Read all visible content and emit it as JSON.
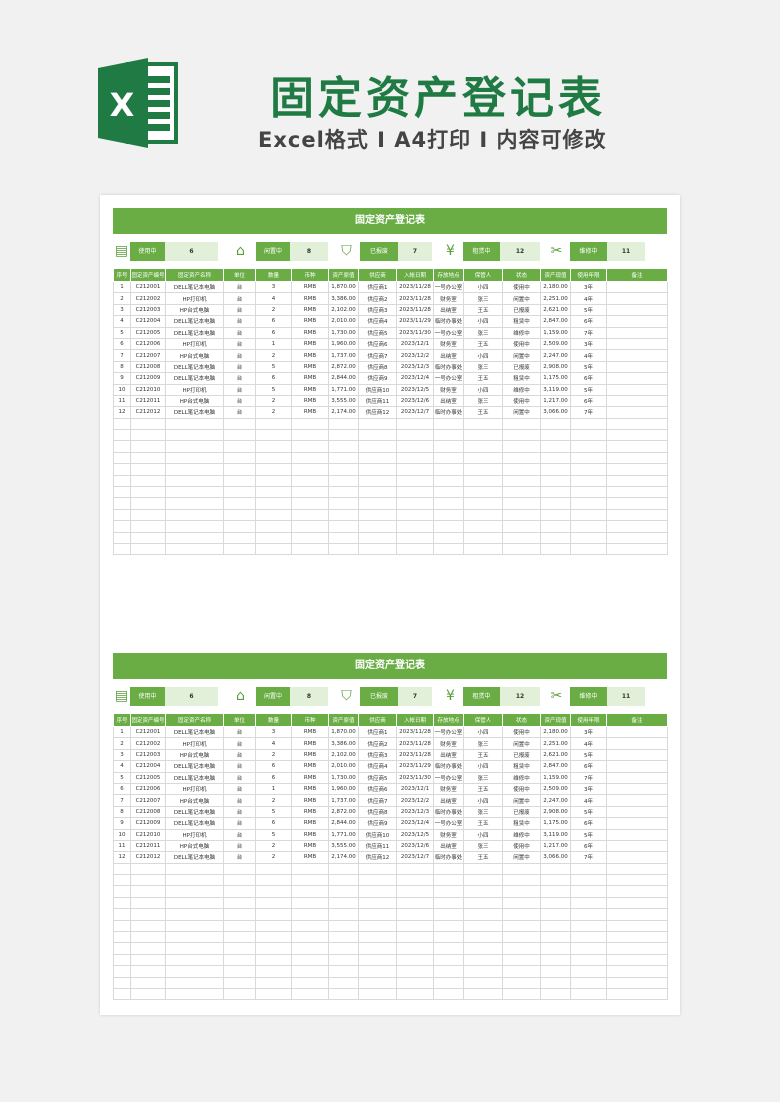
{
  "header": {
    "title": "固定资产登记表",
    "subtitle": "Excel格式 I A4打印 I 内容可修改",
    "logo_letter": "X"
  },
  "colors": {
    "accent": "#6aad44",
    "title_green": "#1f7a43",
    "light": "#e2efd9"
  },
  "sheet": {
    "title": "固定资产登记表",
    "stats": [
      {
        "icon": "document-icon",
        "label": "使用中",
        "value": "6"
      },
      {
        "icon": "house-icon",
        "label": "闲置中",
        "value": "8"
      },
      {
        "icon": "shield-icon",
        "label": "已报废",
        "value": "7"
      },
      {
        "icon": "yen-icon",
        "label": "租赁中",
        "value": "12"
      },
      {
        "icon": "wrench-icon",
        "label": "维修中",
        "value": "11"
      }
    ],
    "columns": [
      "序号",
      "固定资产编号",
      "固定资产名称",
      "单位",
      "数量",
      "币种",
      "资产原值",
      "供应商",
      "入帐日期",
      "存放地点",
      "保管人",
      "状态",
      "资产现值",
      "使用年限",
      "备注"
    ],
    "rows": [
      [
        "1",
        "C212001",
        "DELL笔记本电脑",
        "台",
        "3",
        "RMB",
        "1,870.00",
        "供应商1",
        "2023/11/28",
        "一号办公室",
        "小四",
        "使用中",
        "2,180.00",
        "3年",
        ""
      ],
      [
        "2",
        "C212002",
        "HP打印机",
        "台",
        "4",
        "RMB",
        "3,386.00",
        "供应商2",
        "2023/11/28",
        "财务室",
        "张三",
        "闲置中",
        "2,251.00",
        "4年",
        ""
      ],
      [
        "3",
        "C212003",
        "HP台式电脑",
        "台",
        "2",
        "RMB",
        "2,102.00",
        "供应商3",
        "2023/11/28",
        "出纳室",
        "王五",
        "已报废",
        "2,621.00",
        "5年",
        ""
      ],
      [
        "4",
        "C212004",
        "DELL笔记本电脑",
        "台",
        "6",
        "RMB",
        "2,010.00",
        "供应商4",
        "2023/11/29",
        "临时办事处",
        "小四",
        "租赁中",
        "2,847.00",
        "6年",
        ""
      ],
      [
        "5",
        "C212005",
        "DELL笔记本电脑",
        "台",
        "6",
        "RMB",
        "1,730.00",
        "供应商5",
        "2023/11/30",
        "一号办公室",
        "张三",
        "维修中",
        "1,159.00",
        "7年",
        ""
      ],
      [
        "6",
        "C212006",
        "HP打印机",
        "台",
        "1",
        "RMB",
        "1,960.00",
        "供应商6",
        "2023/12/1",
        "财务室",
        "王五",
        "使用中",
        "2,509.00",
        "3年",
        ""
      ],
      [
        "7",
        "C212007",
        "HP台式电脑",
        "台",
        "2",
        "RMB",
        "1,737.00",
        "供应商7",
        "2023/12/2",
        "出纳室",
        "小四",
        "闲置中",
        "2,247.00",
        "4年",
        ""
      ],
      [
        "8",
        "C212008",
        "DELL笔记本电脑",
        "台",
        "5",
        "RMB",
        "2,872.00",
        "供应商8",
        "2023/12/3",
        "临时办事处",
        "张三",
        "已报废",
        "2,908.00",
        "5年",
        ""
      ],
      [
        "9",
        "C212009",
        "DELL笔记本电脑",
        "台",
        "6",
        "RMB",
        "2,844.00",
        "供应商9",
        "2023/12/4",
        "一号办公室",
        "王五",
        "租赁中",
        "1,175.00",
        "6年",
        ""
      ],
      [
        "10",
        "C212010",
        "HP打印机",
        "台",
        "5",
        "RMB",
        "1,771.00",
        "供应商10",
        "2023/12/5",
        "财务室",
        "小四",
        "维修中",
        "3,119.00",
        "5年",
        ""
      ],
      [
        "11",
        "C212011",
        "HP台式电脑",
        "台",
        "2",
        "RMB",
        "3,555.00",
        "供应商11",
        "2023/12/6",
        "出纳室",
        "张三",
        "使用中",
        "1,217.00",
        "6年",
        ""
      ],
      [
        "12",
        "C212012",
        "DELL笔记本电脑",
        "台",
        "2",
        "RMB",
        "2,174.00",
        "供应商12",
        "2023/12/7",
        "临时办事处",
        "王五",
        "闲置中",
        "3,066.00",
        "7年",
        ""
      ]
    ]
  }
}
